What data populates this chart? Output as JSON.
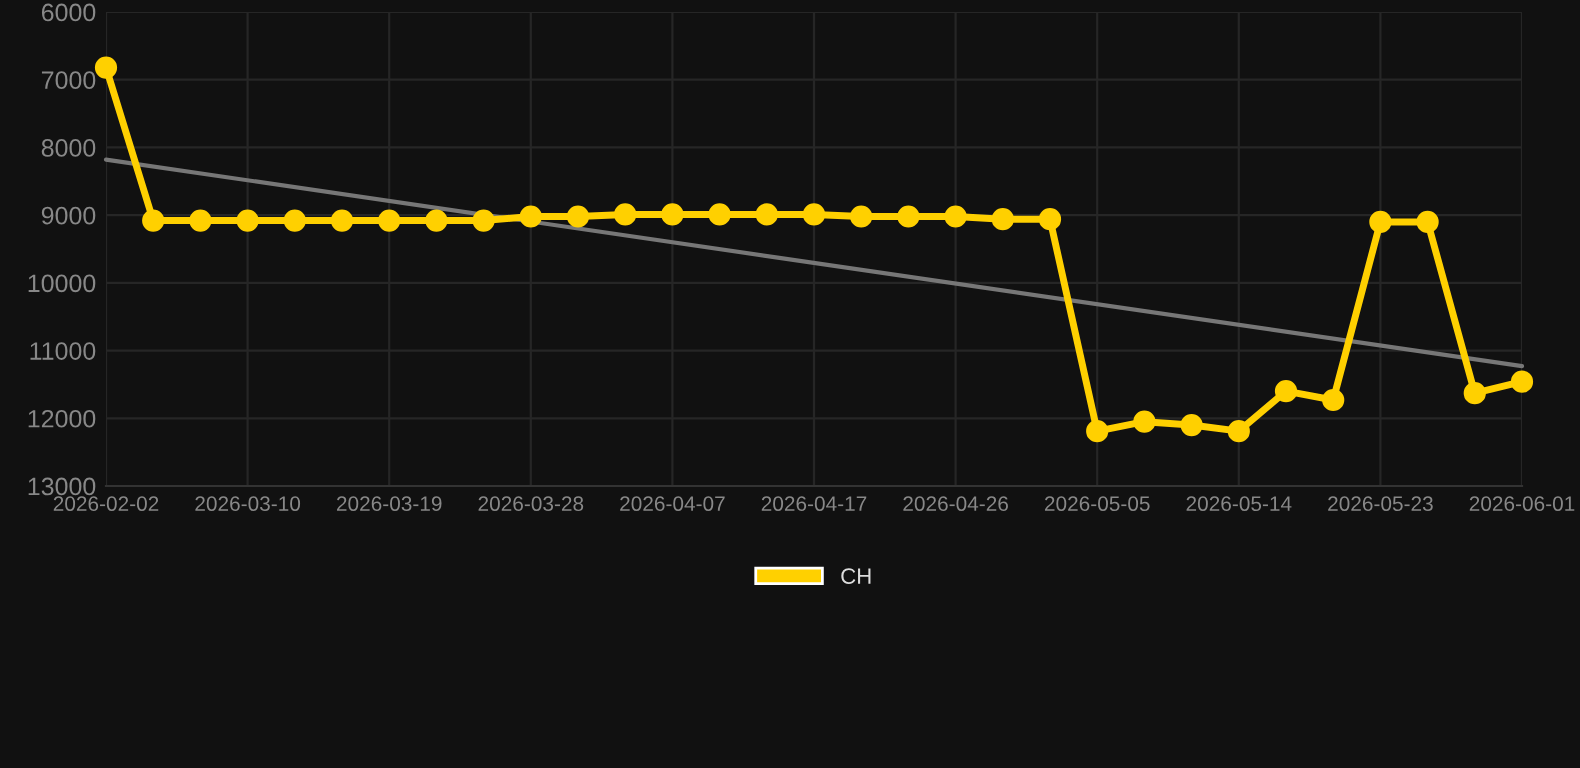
{
  "chart_data": {
    "type": "line",
    "categories": [
      "2026-02-02",
      null,
      null,
      "2026-03-10",
      null,
      null,
      "2026-03-19",
      null,
      null,
      "2026-03-28",
      null,
      null,
      "2026-04-07",
      null,
      null,
      "2026-04-17",
      null,
      null,
      "2026-04-26",
      null,
      null,
      "2026-05-05",
      null,
      null,
      "2026-05-14",
      null,
      null,
      "2026-05-23",
      null,
      null,
      "2026-06-01"
    ],
    "series": [
      {
        "name": "CH",
        "color": "#ffd000",
        "marker": "circle",
        "values": [
          6820,
          9080,
          9080,
          9080,
          9080,
          9080,
          9080,
          9080,
          9080,
          9020,
          9020,
          8990,
          8990,
          8990,
          8990,
          8990,
          9020,
          9020,
          9020,
          9060,
          9060,
          12190,
          12050,
          12100,
          12190,
          11600,
          11730,
          9100,
          9100,
          11630,
          11460
        ]
      },
      {
        "color": "#777777",
        "marker": "none",
        "values": [
          8180,
          null,
          null,
          null,
          null,
          null,
          null,
          null,
          null,
          null,
          null,
          null,
          null,
          null,
          null,
          null,
          null,
          null,
          null,
          null,
          null,
          null,
          null,
          null,
          null,
          null,
          null,
          null,
          null,
          null,
          11230
        ]
      }
    ],
    "ylim": [
      13000,
      6000
    ],
    "yticks": [
      6000,
      7000,
      8000,
      9000,
      10000,
      11000,
      12000,
      13000
    ],
    "grid": true,
    "legend": "bottom",
    "line_style": "solid"
  }
}
